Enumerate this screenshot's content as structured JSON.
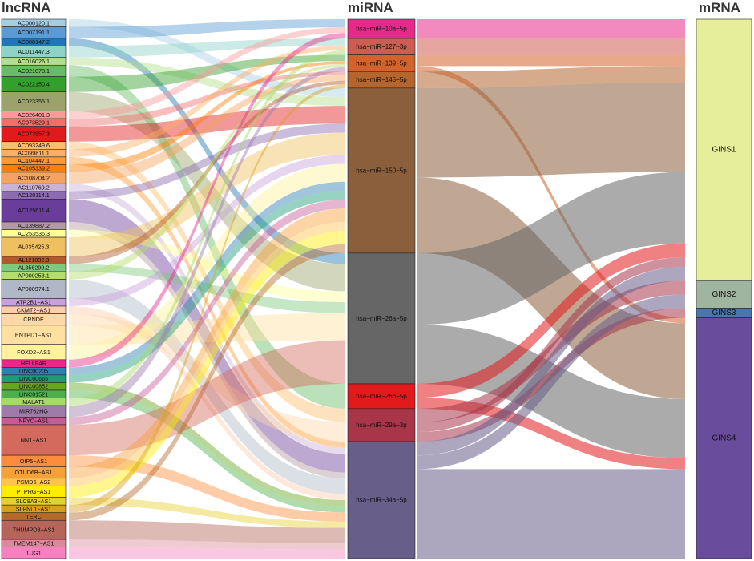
{
  "headers": {
    "lncrna": "lncRNA",
    "mirna": "miRNA",
    "mrna": "mRNA"
  },
  "lncrna": [
    {
      "name": "AC000120.1",
      "w": 1,
      "color": "#a6cee3"
    },
    {
      "name": "AC007191.1",
      "w": 1.5,
      "color": "#5b9bd5"
    },
    {
      "name": "AC008147.2",
      "w": 1,
      "color": "#1f78b4"
    },
    {
      "name": "AC011447.3",
      "w": 1.5,
      "color": "#8dd3c7"
    },
    {
      "name": "AC016026.1",
      "w": 1,
      "color": "#b2df8a"
    },
    {
      "name": "AC021078.1",
      "w": 1.5,
      "color": "#66bd63"
    },
    {
      "name": "AC022150.4",
      "w": 2,
      "color": "#33a02c"
    },
    {
      "name": "AC023355.1",
      "w": 2.5,
      "color": "#9aa36b"
    },
    {
      "name": "AC026401.3",
      "w": 1,
      "color": "#fb9a99"
    },
    {
      "name": "AC073529.1",
      "w": 1,
      "color": "#f46d6d"
    },
    {
      "name": "AC073957.3",
      "w": 2,
      "color": "#e31a1c"
    },
    {
      "name": "AC093249.6",
      "w": 1,
      "color": "#fdbf6f"
    },
    {
      "name": "AC099811.1",
      "w": 1,
      "color": "#fdae61"
    },
    {
      "name": "AC104447.1",
      "w": 1,
      "color": "#ff9933"
    },
    {
      "name": "AC105339.2",
      "w": 1,
      "color": "#ff7f00"
    },
    {
      "name": "AC108704.2",
      "w": 1.5,
      "color": "#f4a460"
    },
    {
      "name": "AC110769.2",
      "w": 1,
      "color": "#cab2d6"
    },
    {
      "name": "AC120114.1",
      "w": 1,
      "color": "#8c6bb1"
    },
    {
      "name": "AC125611.4",
      "w": 3,
      "color": "#6a3d9a"
    },
    {
      "name": "AC139887.2",
      "w": 1,
      "color": "#b39aa0"
    },
    {
      "name": "AC253536.3",
      "w": 1,
      "color": "#ffff99"
    },
    {
      "name": "AL035425.3",
      "w": 2.5,
      "color": "#f0c060"
    },
    {
      "name": "AL121832.3",
      "w": 1,
      "color": "#b15928"
    },
    {
      "name": "AL356299.2",
      "w": 1,
      "color": "#7fc97f"
    },
    {
      "name": "AP000253.1",
      "w": 1,
      "color": "#b3de69"
    },
    {
      "name": "AP000974.1",
      "w": 2.5,
      "color": "#b0b8c8"
    },
    {
      "name": "ATP2B1−AS1",
      "w": 1,
      "color": "#c9a0dc"
    },
    {
      "name": "CKMT2−AS1",
      "w": 1,
      "color": "#fdcdac"
    },
    {
      "name": "CRNDE",
      "w": 1.5,
      "color": "#ffd8a8"
    },
    {
      "name": "ENTPD1−AS1",
      "w": 2.5,
      "color": "#ffe0a0"
    },
    {
      "name": "FOXD2−AS1",
      "w": 2,
      "color": "#fff29a"
    },
    {
      "name": "HELLPAR",
      "w": 1,
      "color": "#e7298a"
    },
    {
      "name": "LINC00205",
      "w": 1,
      "color": "#2f7fb0"
    },
    {
      "name": "LINC00665",
      "w": 1,
      "color": "#1b9e77"
    },
    {
      "name": "LINC00852",
      "w": 1,
      "color": "#66a61e"
    },
    {
      "name": "LINC01521",
      "w": 1,
      "color": "#4daf4a"
    },
    {
      "name": "MALAT1",
      "w": 1,
      "color": "#a6d96a"
    },
    {
      "name": "MIR762HG",
      "w": 1.5,
      "color": "#9e7ba8"
    },
    {
      "name": "NFYC−AS1",
      "w": 1,
      "color": "#c85a96"
    },
    {
      "name": "NNT−AS1",
      "w": 4,
      "color": "#d46a5e"
    },
    {
      "name": "OIP5−AS1",
      "w": 1.5,
      "color": "#fd8d3c"
    },
    {
      "name": "OTUD6B−AS1",
      "w": 1.5,
      "color": "#f8a038"
    },
    {
      "name": "PSMD6−AS2",
      "w": 1,
      "color": "#fec44f"
    },
    {
      "name": "PTPRG−AS1",
      "w": 1.5,
      "color": "#ffed00"
    },
    {
      "name": "SLC9A3−AS1",
      "w": 1,
      "color": "#e6d030"
    },
    {
      "name": "SLFNL1−AS1",
      "w": 1,
      "color": "#d9a020"
    },
    {
      "name": "TERC",
      "w": 1,
      "color": "#b56a2a"
    },
    {
      "name": "THUMPD3−AS1",
      "w": 2.5,
      "color": "#b5655a"
    },
    {
      "name": "TMEM147−AS1",
      "w": 1,
      "color": "#d98a9a"
    },
    {
      "name": "TUG1",
      "w": 1.5,
      "color": "#f781bf"
    }
  ],
  "mirna": [
    {
      "name": "hsa−miR−10a−5p",
      "color": "#e7298a"
    },
    {
      "name": "hsa−miR−127−3p",
      "color": "#cf5c52"
    },
    {
      "name": "hsa−miR−139−5p",
      "color": "#d4622a"
    },
    {
      "name": "hsa−miR−145−5p",
      "color": "#b5652e"
    },
    {
      "name": "hsa−miR−150−5p",
      "color": "#8b5e3c"
    },
    {
      "name": "hsa−miR−26a−5p",
      "color": "#666666"
    },
    {
      "name": "hsa−miR−26b−5p",
      "color": "#e31a1c"
    },
    {
      "name": "hsa−miR−29a−3p",
      "color": "#a83648"
    },
    {
      "name": "hsa−miR−34a−5p",
      "color": "#675e8a"
    }
  ],
  "mrna": [
    {
      "name": "GINS1",
      "color": "#e6ee99"
    },
    {
      "name": "GINS2",
      "color": "#9fb5a0"
    },
    {
      "name": "GINS3",
      "color": "#4a76ac"
    },
    {
      "name": "GINS4",
      "color": "#6a4c9c"
    }
  ],
  "links_lnc_mir": [
    [
      0,
      4
    ],
    [
      1,
      0
    ],
    [
      2,
      5
    ],
    [
      3,
      1
    ],
    [
      4,
      4
    ],
    [
      5,
      6
    ],
    [
      6,
      2
    ],
    [
      7,
      5
    ],
    [
      8,
      0
    ],
    [
      9,
      3
    ],
    [
      10,
      4
    ],
    [
      11,
      7
    ],
    [
      12,
      1
    ],
    [
      13,
      8
    ],
    [
      14,
      2
    ],
    [
      15,
      3
    ],
    [
      16,
      8
    ],
    [
      17,
      4
    ],
    [
      18,
      8
    ],
    [
      19,
      8
    ],
    [
      20,
      5
    ],
    [
      21,
      4
    ],
    [
      22,
      3
    ],
    [
      23,
      5
    ],
    [
      24,
      2
    ],
    [
      25,
      8
    ],
    [
      26,
      4
    ],
    [
      27,
      8
    ],
    [
      28,
      7
    ],
    [
      29,
      5
    ],
    [
      30,
      4
    ],
    [
      31,
      0
    ],
    [
      32,
      4
    ],
    [
      33,
      4
    ],
    [
      34,
      8
    ],
    [
      35,
      8
    ],
    [
      36,
      1
    ],
    [
      37,
      2
    ],
    [
      38,
      4
    ],
    [
      39,
      5
    ],
    [
      40,
      8
    ],
    [
      41,
      4
    ],
    [
      42,
      4
    ],
    [
      43,
      4
    ],
    [
      44,
      8
    ],
    [
      45,
      3
    ],
    [
      46,
      4
    ],
    [
      47,
      8
    ],
    [
      48,
      8
    ],
    [
      49,
      8
    ]
  ],
  "links_mir_mrna": [
    {
      "mir": 0,
      "mrna": 0,
      "w": 1.4
    },
    {
      "mir": 1,
      "mrna": 0,
      "w": 1.2
    },
    {
      "mir": 2,
      "mrna": 0,
      "w": 0.8
    },
    {
      "mir": 2,
      "mrna": 3,
      "w": 0.4
    },
    {
      "mir": 3,
      "mrna": 0,
      "w": 1.2
    },
    {
      "mir": 4,
      "mrna": 0,
      "w": 6.5
    },
    {
      "mir": 4,
      "mrna": 3,
      "w": 5.5
    },
    {
      "mir": 5,
      "mrna": 0,
      "w": 5.2
    },
    {
      "mir": 5,
      "mrna": 3,
      "w": 4.3
    },
    {
      "mir": 6,
      "mrna": 0,
      "w": 1
    },
    {
      "mir": 6,
      "mrna": 3,
      "w": 0.8
    },
    {
      "mir": 7,
      "mrna": 1,
      "w": 1
    },
    {
      "mir": 7,
      "mrna": 0,
      "w": 0.7
    },
    {
      "mir": 7,
      "mrna": 2,
      "w": 0.7
    },
    {
      "mir": 8,
      "mrna": 0,
      "w": 1
    },
    {
      "mir": 8,
      "mrna": 1,
      "w": 1
    },
    {
      "mir": 8,
      "mrna": 3,
      "w": 6.5
    }
  ]
}
